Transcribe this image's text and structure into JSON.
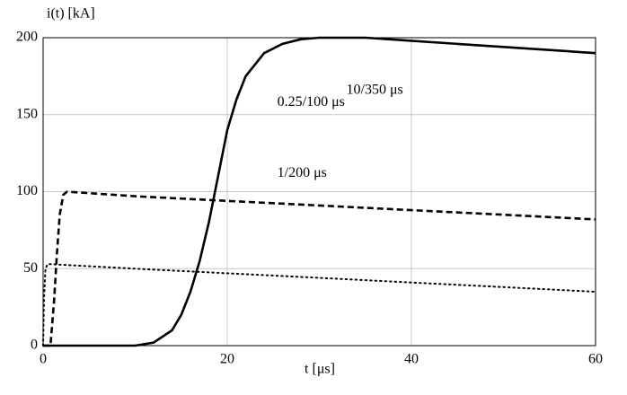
{
  "chart_data": {
    "type": "line",
    "y_label": "i(t) [kA]",
    "x_label": "t [μs]",
    "xlim": [
      0,
      60
    ],
    "xticks": [
      0,
      20,
      40,
      60
    ],
    "ylim": [
      0,
      200
    ],
    "yticks": [
      0,
      50,
      100,
      150,
      200
    ],
    "grid": true,
    "series": [
      {
        "name": "10/350 μs",
        "color": "#000000",
        "dash": "solid",
        "x": [
          0,
          5,
          10,
          12,
          14,
          15,
          16,
          17,
          18,
          19,
          20,
          21,
          22,
          24,
          26,
          28,
          30,
          35,
          40,
          45,
          50,
          55,
          60
        ],
        "values": [
          0,
          0,
          0,
          2,
          10,
          20,
          35,
          55,
          80,
          110,
          140,
          160,
          175,
          190,
          196,
          199,
          200,
          200,
          198,
          196,
          194,
          192,
          190
        ]
      },
      {
        "name": "1/200 μs",
        "color": "#000000",
        "dash": "dashed",
        "x": [
          0,
          0.8,
          1.2,
          1.5,
          1.8,
          2.2,
          2.6,
          10,
          20,
          30,
          40,
          50,
          60
        ],
        "values": [
          0,
          0,
          30,
          60,
          85,
          98,
          100,
          97,
          94,
          91,
          88,
          85,
          82
        ]
      },
      {
        "name": "0.25/100 μs",
        "color": "#000000",
        "dash": "dotted",
        "x": [
          0,
          0.1,
          0.25,
          0.5,
          10,
          20,
          30,
          40,
          50,
          60
        ],
        "values": [
          0,
          30,
          50,
          53,
          50,
          47,
          44,
          41,
          38,
          35
        ]
      }
    ]
  }
}
